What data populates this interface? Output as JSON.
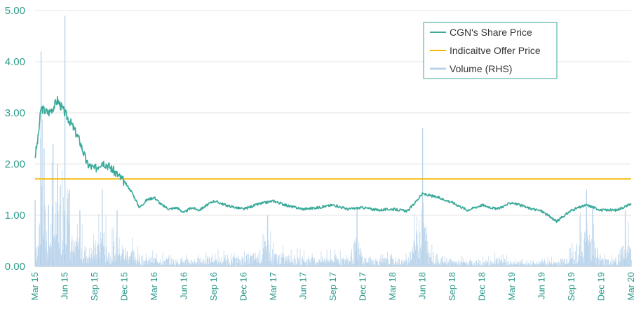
{
  "chart_data": {
    "type": "line",
    "title": "",
    "xlabel": "",
    "ylabel": "",
    "ylim": [
      0,
      5
    ],
    "y_ticks": [
      "0.00",
      "1.00",
      "2.00",
      "3.00",
      "4.00",
      "5.00"
    ],
    "x_ticks": [
      "Mar 15",
      "Jun 15",
      "Sep 15",
      "Dec 15",
      "Mar 16",
      "Jun 16",
      "Sep 16",
      "Dec 16",
      "Mar 17",
      "Jun 17",
      "Sep 17",
      "Dec 17",
      "Mar 18",
      "Jun 18",
      "Sep 18",
      "Dec 18",
      "Mar 19",
      "Jun 19",
      "Sep 19",
      "Dec 19",
      "Mar 20"
    ],
    "grid": "horizontal",
    "legend_position": "top-right",
    "series": [
      {
        "name": "CGN's Share Price",
        "kind": "line",
        "color": "#3aaa9a",
        "x": [
          0,
          0.1,
          0.2,
          0.3,
          0.45,
          0.6,
          0.75,
          1,
          1.25,
          1.5,
          1.75,
          2,
          2.25,
          2.5,
          2.75,
          3,
          3.25,
          3.5,
          3.75,
          4,
          4.25,
          4.5,
          4.75,
          5,
          5.25,
          5.5,
          6,
          6.5,
          7,
          7.5,
          8,
          8.5,
          9,
          9.5,
          10,
          10.5,
          11,
          11.5,
          12,
          12.5,
          13,
          13.5,
          14,
          14.5,
          15,
          15.5,
          16,
          16.5,
          17,
          17.5,
          18,
          18.5,
          19,
          19.5,
          20
        ],
        "y": [
          2.15,
          2.5,
          3.1,
          3.05,
          3.0,
          3.1,
          3.25,
          3.0,
          2.75,
          2.45,
          2.0,
          1.9,
          2.05,
          1.95,
          1.8,
          1.65,
          1.45,
          1.15,
          1.3,
          1.35,
          1.2,
          1.12,
          1.15,
          1.05,
          1.15,
          1.1,
          1.28,
          1.18,
          1.12,
          1.22,
          1.28,
          1.18,
          1.12,
          1.15,
          1.2,
          1.12,
          1.15,
          1.1,
          1.12,
          1.08,
          1.42,
          1.35,
          1.25,
          1.1,
          1.2,
          1.12,
          1.25,
          1.15,
          1.08,
          0.88,
          1.1,
          1.2,
          1.1,
          1.1,
          1.22
        ]
      },
      {
        "name": "Indicaitve Offer Price",
        "kind": "line",
        "color": "#f5b800",
        "x": [
          0,
          20
        ],
        "y": [
          1.71,
          1.71
        ]
      },
      {
        "name": "Volume (RHS)",
        "kind": "bar",
        "color": "#b9d3ea",
        "x": [
          0,
          0.1,
          0.2,
          0.3,
          0.45,
          0.6,
          0.75,
          1,
          1.15,
          1.3,
          1.5,
          1.75,
          2,
          2.25,
          2.5,
          2.75,
          3,
          3.25,
          3.5,
          3.75,
          4,
          4.5,
          5,
          5.5,
          6,
          6.5,
          7,
          7.5,
          7.8,
          8,
          8.5,
          9,
          9.5,
          10,
          10.5,
          10.8,
          11,
          11.5,
          12,
          12.5,
          13,
          13.2,
          13.5,
          14,
          14.5,
          15,
          15.5,
          16,
          16.5,
          17,
          17.5,
          18,
          18.5,
          18.7,
          19,
          19.5,
          19.8,
          20
        ],
        "y": [
          1.3,
          0.9,
          4.2,
          2.3,
          1.2,
          2.4,
          2.0,
          4.9,
          1.5,
          0.8,
          1.1,
          0.6,
          0.8,
          1.5,
          0.6,
          1.1,
          0.7,
          0.6,
          0.4,
          0.3,
          0.35,
          0.3,
          0.25,
          0.3,
          0.35,
          0.3,
          0.4,
          0.5,
          1.0,
          0.5,
          0.4,
          0.35,
          0.3,
          0.4,
          0.3,
          1.1,
          0.35,
          0.3,
          0.3,
          0.25,
          2.7,
          0.6,
          0.4,
          0.25,
          0.2,
          0.2,
          0.3,
          0.2,
          0.15,
          0.2,
          0.2,
          0.5,
          1.5,
          1.2,
          0.3,
          0.3,
          1.1,
          0.8
        ]
      }
    ]
  }
}
